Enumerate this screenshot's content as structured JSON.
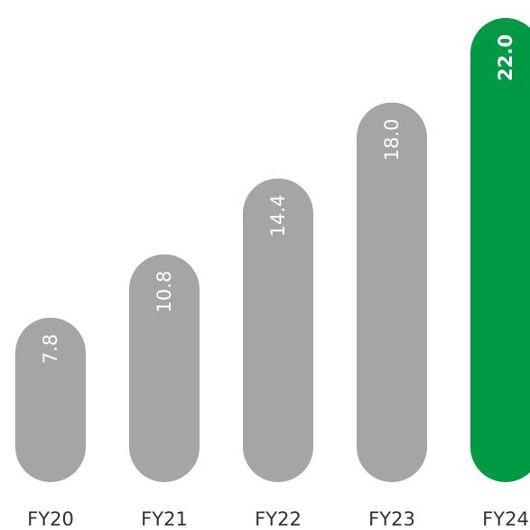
{
  "chart_data": {
    "type": "bar",
    "orientation": "vertical",
    "categories": [
      "FY20",
      "FY21",
      "FY22",
      "FY23",
      "FY24"
    ],
    "values": [
      7.8,
      10.8,
      14.4,
      18.0,
      22.0
    ],
    "value_labels": [
      "7.8",
      "10.8",
      "14.4",
      "18.0",
      "22.0"
    ],
    "highlight_index": 4,
    "title": "",
    "xlabel": "",
    "ylabel": "",
    "ylim": [
      0,
      22.0
    ],
    "grid": false,
    "legend": "none",
    "bar_shape": "rounded-pill",
    "colors": {
      "bar": "#a5a5a5",
      "highlight": "#009a44",
      "value_label": "#ffffff",
      "category_label": "#333333"
    }
  }
}
